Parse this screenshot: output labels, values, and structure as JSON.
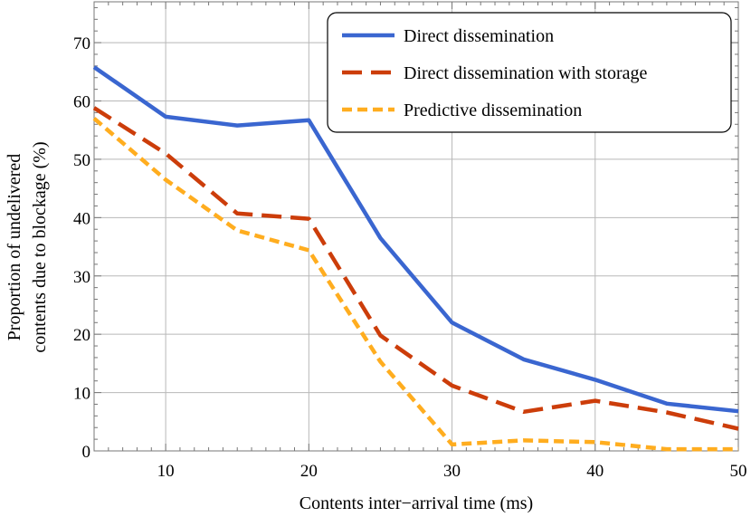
{
  "chart_data": {
    "type": "line",
    "xlabel": "Contents inter−arrival time (ms)",
    "ylabel_line1": "Proportion of undelivered",
    "ylabel_line2": "contents due to blockage (%)",
    "xlim": [
      5,
      50
    ],
    "ylim": [
      0,
      77
    ],
    "xticks": [
      10,
      20,
      30,
      40,
      50
    ],
    "yticks": [
      0,
      10,
      20,
      30,
      40,
      50,
      60,
      70
    ],
    "grid": true,
    "legend_position": "top-right",
    "x": [
      5,
      10,
      15,
      20,
      25,
      30,
      35,
      40,
      45,
      50
    ],
    "series": [
      {
        "name": "Direct dissemination",
        "color": "#3a66d0",
        "style": "solid",
        "values": [
          65.8,
          57.3,
          55.8,
          56.7,
          36.5,
          22.0,
          15.7,
          12.2,
          8.1,
          6.8
        ]
      },
      {
        "name": "Direct dissemination with storage",
        "color": "#cc3d0a",
        "style": "dashed",
        "values": [
          58.8,
          51.0,
          40.7,
          39.8,
          19.8,
          11.2,
          6.7,
          8.6,
          6.6,
          3.8
        ]
      },
      {
        "name": "Predictive dissemination",
        "color": "#ffad1f",
        "style": "dotted",
        "values": [
          57.0,
          46.5,
          37.8,
          34.4,
          15.3,
          1.1,
          1.8,
          1.5,
          0.3,
          0.3
        ]
      }
    ]
  }
}
